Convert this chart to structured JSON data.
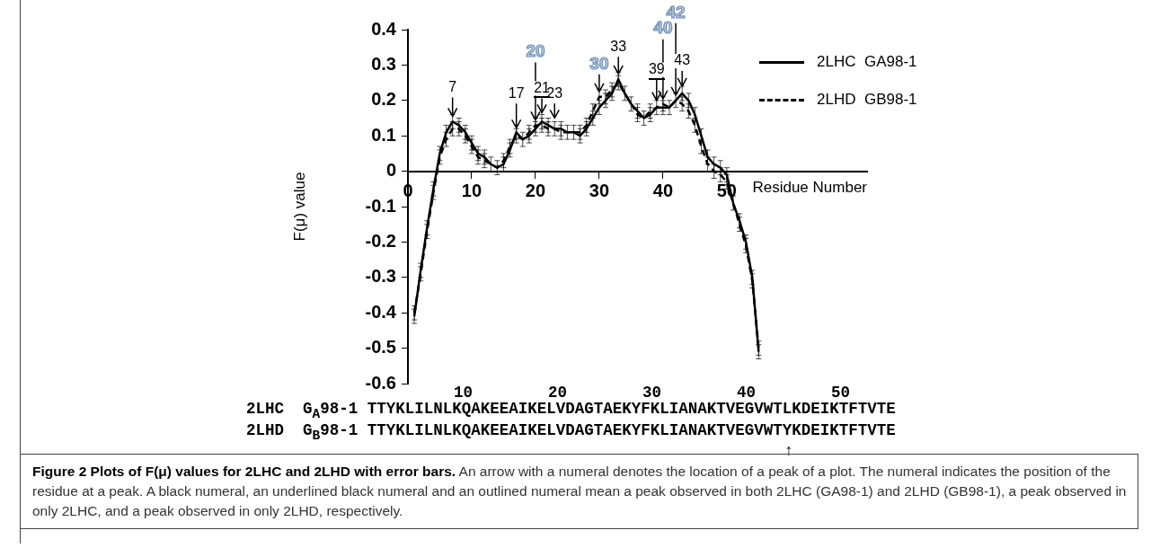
{
  "chart_data": {
    "type": "line",
    "title": "Figure 2 Plots of F(μ) values for 2LHC and 2LHD with error bars.",
    "xlabel": "Residue Number",
    "ylabel": "F(μ) value",
    "xlim": [
      0,
      72
    ],
    "xticks": [
      0,
      10,
      20,
      30,
      40,
      50
    ],
    "ylim": [
      -0.6,
      0.4
    ],
    "yticks": [
      -0.6,
      -0.5,
      -0.4,
      -0.3,
      -0.2,
      -0.1,
      0,
      0.1,
      0.2,
      0.3,
      0.4
    ],
    "grid": false,
    "legend": "top right",
    "marker": "none",
    "series": [
      {
        "name": "2LHC  GA98-1",
        "color": "#000000",
        "line_style": "solid",
        "x": [
          1,
          2,
          3,
          4,
          5,
          6,
          7,
          8,
          9,
          10,
          11,
          12,
          13,
          14,
          15,
          16,
          17,
          18,
          19,
          20,
          21,
          22,
          23,
          24,
          25,
          26,
          27,
          28,
          29,
          30,
          31,
          32,
          33,
          34,
          35,
          36,
          37,
          38,
          39,
          40,
          41,
          42,
          43,
          44,
          45,
          46,
          47,
          48,
          49,
          50,
          51,
          52,
          53,
          54,
          55
        ],
        "values": [
          -0.41,
          -0.28,
          -0.16,
          -0.05,
          0.05,
          0.11,
          0.14,
          0.13,
          0.11,
          0.08,
          0.05,
          0.04,
          0.02,
          0.01,
          0.02,
          0.06,
          0.11,
          0.09,
          0.1,
          0.12,
          0.14,
          0.13,
          0.12,
          0.12,
          0.11,
          0.11,
          0.1,
          0.12,
          0.15,
          0.18,
          0.2,
          0.22,
          0.26,
          0.22,
          0.19,
          0.17,
          0.15,
          0.16,
          0.18,
          0.18,
          0.18,
          0.2,
          0.22,
          0.2,
          0.16,
          0.1,
          0.04,
          0.02,
          0.01,
          -0.01,
          -0.09,
          -0.14,
          -0.2,
          -0.3,
          -0.51
        ],
        "errors": [
          0.02,
          0.02,
          0.02,
          0.02,
          0.02,
          0.02,
          0.02,
          0.02,
          0.02,
          0.02,
          0.02,
          0.02,
          0.02,
          0.02,
          0.02,
          0.02,
          0.02,
          0.02,
          0.02,
          0.02,
          0.02,
          0.02,
          0.02,
          0.02,
          0.02,
          0.02,
          0.02,
          0.02,
          0.02,
          0.02,
          0.02,
          0.02,
          0.02,
          0.02,
          0.02,
          0.02,
          0.02,
          0.02,
          0.02,
          0.02,
          0.02,
          0.02,
          0.02,
          0.02,
          0.02,
          0.02,
          0.02,
          0.02,
          0.02,
          0.02,
          0.02,
          0.02,
          0.02,
          0.02,
          0.02
        ]
      },
      {
        "name": "2LHD  GB98-1",
        "color": "#000000",
        "line_style": "dashed",
        "x": [
          1,
          2,
          3,
          4,
          5,
          6,
          7,
          8,
          9,
          10,
          11,
          12,
          13,
          14,
          15,
          16,
          17,
          18,
          19,
          20,
          21,
          22,
          23,
          24,
          25,
          26,
          27,
          28,
          29,
          30,
          31,
          32,
          33,
          34,
          35,
          36,
          37,
          38,
          39,
          40,
          41,
          42,
          43,
          44,
          45,
          46,
          47,
          48,
          49,
          50,
          51,
          52,
          53,
          54,
          55
        ],
        "values": [
          -0.4,
          -0.29,
          -0.17,
          -0.06,
          0.04,
          0.09,
          0.12,
          0.12,
          0.1,
          0.07,
          0.04,
          0.03,
          0.02,
          0.01,
          0.03,
          0.07,
          0.1,
          0.09,
          0.11,
          0.13,
          0.13,
          0.12,
          0.12,
          0.11,
          0.11,
          0.11,
          0.11,
          0.13,
          0.17,
          0.21,
          0.21,
          0.23,
          0.25,
          0.22,
          0.19,
          0.16,
          0.15,
          0.17,
          0.18,
          0.19,
          0.18,
          0.2,
          0.19,
          0.17,
          0.13,
          0.07,
          0.02,
          0.0,
          -0.01,
          -0.03,
          -0.09,
          -0.15,
          -0.21,
          -0.31,
          -0.5
        ],
        "errors": [
          0.02,
          0.02,
          0.02,
          0.02,
          0.02,
          0.02,
          0.02,
          0.02,
          0.02,
          0.02,
          0.02,
          0.02,
          null,
          null,
          0.02,
          0.02,
          0.02,
          null,
          0.02,
          0.02,
          0.02,
          0.02,
          null,
          0.02,
          null,
          null,
          0.02,
          0.02,
          0.02,
          0.02,
          0.02,
          0.02,
          0.02,
          null,
          null,
          0.02,
          null,
          0.02,
          null,
          0.02,
          null,
          null,
          0.02,
          0.02,
          0.02,
          0.02,
          0.02,
          0.02,
          0.02,
          0.02,
          null,
          0.02,
          0.02,
          0.02,
          0.02
        ]
      }
    ],
    "annotations": [
      {
        "text": "7",
        "x": 7,
        "y": 0.14
      },
      {
        "text": "17",
        "x": 17,
        "y": 0.11
      },
      {
        "text": "20",
        "x": 20,
        "y": 0.13
      },
      {
        "text": "21",
        "x": 21,
        "y": 0.14
      },
      {
        "text": "23",
        "x": 23,
        "y": 0.12
      },
      {
        "text": "30",
        "x": 30,
        "y": 0.21
      },
      {
        "text": "33",
        "x": 33,
        "y": 0.26
      },
      {
        "text": "39",
        "x": 39,
        "y": 0.18
      },
      {
        "text": "40",
        "x": 40,
        "y": 0.19
      },
      {
        "text": "42",
        "x": 42,
        "y": 0.2
      },
      {
        "text": "43",
        "x": 43,
        "y": 0.22
      },
      "                      10        20        30        40        50",
      "2LHC  G$_{A}$98-1 TTYKLILNLKQAKEEAIKELVDAGTAEKYFKLIANAKTVEGVWTLKDEIKTFTVTE",
      "2LHD  G$_{B}$98-1 TTYKLILNLKQAKEEAIKELVDAGTAEKYFKLIANAKTVEGVWTYKDEIKTFTVTE",
      "                                                         ↑",
      "An arrow with a numeral denotes the location of a peak of a plot. The numeral indicates the position of the residue at a peak. A black numeral, an underlined black numeral and an outlined numeral mean a peak observed in both 2LHC (GA98-1) and 2LHD (GB98-1), a peak observed in only 2LHC, and a peak observed in only 2LHD, respectively."
    ]
  }
}
